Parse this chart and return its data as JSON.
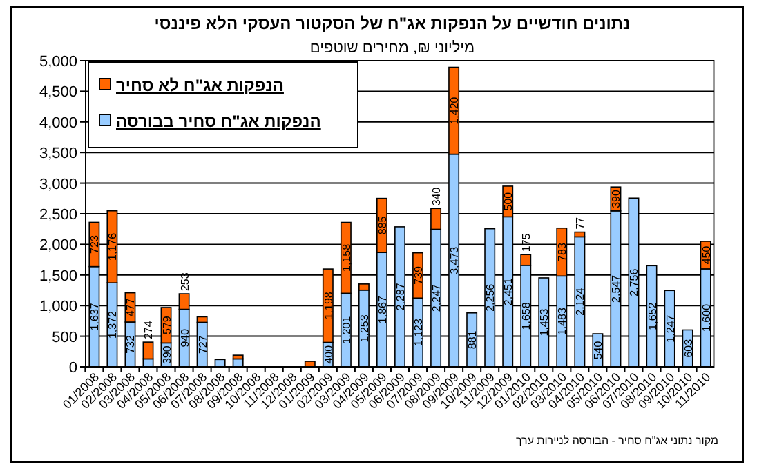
{
  "chart_data": {
    "type": "bar",
    "stacked": true,
    "title": "נתונים חודשיים על הנפקות אג\"ח של הסקטור העסקי הלא פיננסי",
    "subtitle": "מיליוני ₪, מחירים שוטפים",
    "categories": [
      "01/2008",
      "02/2008",
      "03/2008",
      "04/2008",
      "05/2008",
      "06/2008",
      "07/2008",
      "08/2008",
      "09/2008",
      "10/2008",
      "11/2008",
      "12/2008",
      "01/2009",
      "02/2009",
      "03/2009",
      "04/2009",
      "05/2009",
      "06/2009",
      "07/2009",
      "08/2009",
      "09/2009",
      "10/2009",
      "11/2009",
      "12/2009",
      "01/2010",
      "02/2010",
      "03/2010",
      "04/2010",
      "05/2010",
      "06/2010",
      "07/2010",
      "08/2010",
      "09/2010",
      "10/2010",
      "11/2010"
    ],
    "series": [
      {
        "name": "הנפקות אג\"ח סחיר בבורסה",
        "color": "#99ccff",
        "values": [
          1637,
          1372,
          732,
          130,
          390,
          940,
          727,
          120,
          130,
          0,
          0,
          0,
          0,
          400,
          1201,
          1253,
          1867,
          2287,
          1123,
          2247,
          3473,
          881,
          2256,
          2451,
          1658,
          1453,
          1483,
          2124,
          540,
          2547,
          2756,
          1652,
          1247,
          603,
          1600
        ],
        "value_labels": [
          "1,637",
          "1,372",
          "732",
          null,
          "390",
          "940",
          "727",
          null,
          null,
          null,
          null,
          null,
          null,
          "400",
          "1,201",
          "1,253",
          "1,867",
          "2,287",
          "1,123",
          "2,247",
          "3,473",
          "881",
          "2,256",
          "2,451",
          "1,658",
          "1,453",
          "1,483",
          "2,124",
          "540",
          "2,547",
          "2,756",
          "1,652",
          "1,247",
          "603",
          "1,600"
        ]
      },
      {
        "name": "הנפקות אג\"ח לא סחיר",
        "color": "#ff6600",
        "values": [
          723,
          1176,
          477,
          274,
          579,
          253,
          90,
          0,
          60,
          0,
          0,
          0,
          90,
          1198,
          1158,
          100,
          885,
          0,
          739,
          340,
          1420,
          0,
          0,
          500,
          175,
          0,
          783,
          77,
          0,
          390,
          0,
          0,
          0,
          0,
          450
        ],
        "value_labels": [
          "723",
          "1,176",
          "477",
          "274",
          "579",
          "253",
          null,
          null,
          null,
          null,
          null,
          null,
          null,
          "1,198",
          "1,158",
          null,
          "885",
          null,
          "739",
          "340",
          "1,420",
          null,
          null,
          "500",
          "175",
          null,
          "783",
          "77",
          null,
          "390",
          null,
          null,
          null,
          null,
          "450"
        ]
      }
    ],
    "ylim": [
      0,
      5000
    ],
    "yticks": [
      {
        "value": 0,
        "label": "0"
      },
      {
        "value": 500,
        "label": "500"
      },
      {
        "value": 1000,
        "label": "1,000"
      },
      {
        "value": 1500,
        "label": "1,500"
      },
      {
        "value": 2000,
        "label": "2,000"
      },
      {
        "value": 2500,
        "label": "2,500"
      },
      {
        "value": 3000,
        "label": "3,000"
      },
      {
        "value": 3500,
        "label": "3,500"
      },
      {
        "value": 4000,
        "label": "4,000"
      },
      {
        "value": 4500,
        "label": "4,500"
      },
      {
        "value": 5000,
        "label": "5,000"
      }
    ],
    "grid": "y",
    "legend": "top left",
    "annotations": [
      "מקור נתוני אג\"ח סחיר - הבורסה לניירות ערך"
    ]
  }
}
